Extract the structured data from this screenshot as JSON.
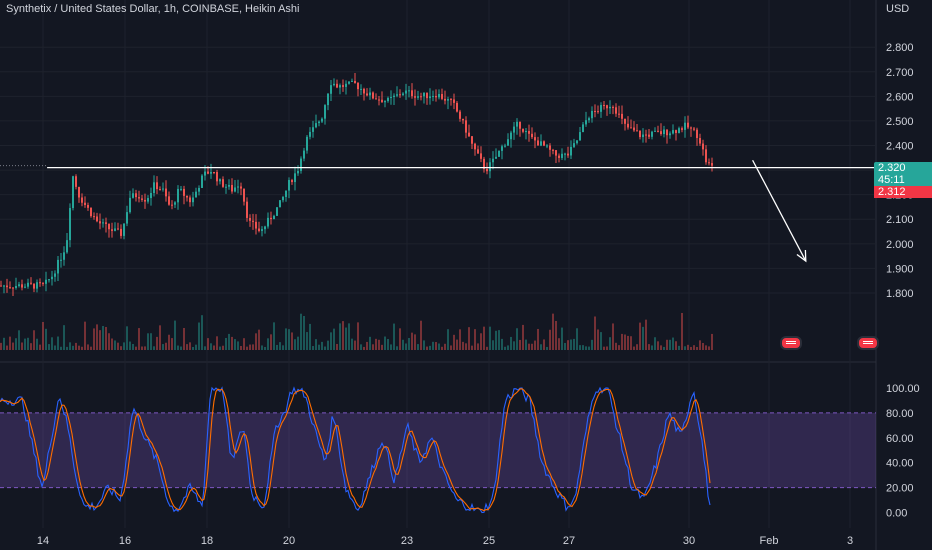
{
  "header": {
    "title": "Synthetix / United States Dollar, 1h, COINBASE, Heikin Ashi",
    "currency": "USD"
  },
  "price_tags": {
    "last_price": "2.320",
    "countdown": "45:11",
    "level_price": "2.312",
    "last_color": "#26a69a",
    "level_color": "#f23645"
  },
  "icons": [
    "us-flag-icon",
    "us-flag-icon"
  ],
  "colors": {
    "up": "#26a69a",
    "down": "#ef5350",
    "background": "#131722",
    "grid": "#1e222d",
    "stoch_k": "#2962ff",
    "stoch_d": "#ff6d00",
    "stoch_band": "#7e57c2",
    "annotation": "#ffffff"
  },
  "chart_data": [
    {
      "type": "candlestick",
      "x_ticks": [
        "14",
        "16",
        "18",
        "20",
        "23",
        "25",
        "27",
        "30",
        "Feb",
        "3"
      ],
      "y_ticks": [
        "2.800",
        "2.700",
        "2.600",
        "2.500",
        "2.400",
        "2.300",
        "2.200",
        "2.100",
        "2.000",
        "1.900",
        "1.800"
      ],
      "ylim": [
        1.69,
        2.87
      ],
      "grid": true,
      "price_path": [
        [
          14,
          1.83
        ],
        [
          14.2,
          1.87
        ],
        [
          14.4,
          1.94
        ],
        [
          14.55,
          2.0
        ],
        [
          14.7,
          2.28
        ],
        [
          14.85,
          2.2
        ],
        [
          15.0,
          2.16
        ],
        [
          15.3,
          2.09
        ],
        [
          15.6,
          2.06
        ],
        [
          15.9,
          2.04
        ],
        [
          16.1,
          2.19
        ],
        [
          16.3,
          2.2
        ],
        [
          16.5,
          2.18
        ],
        [
          16.7,
          2.24
        ],
        [
          16.9,
          2.22
        ],
        [
          17.1,
          2.14
        ],
        [
          17.3,
          2.22
        ],
        [
          17.6,
          2.17
        ],
        [
          17.9,
          2.28
        ],
        [
          18.1,
          2.3
        ],
        [
          18.3,
          2.25
        ],
        [
          18.6,
          2.22
        ],
        [
          18.8,
          2.25
        ],
        [
          19.0,
          2.09
        ],
        [
          19.3,
          2.05
        ],
        [
          19.6,
          2.12
        ],
        [
          19.8,
          2.17
        ],
        [
          20.0,
          2.25
        ],
        [
          20.2,
          2.3
        ],
        [
          20.4,
          2.42
        ],
        [
          20.6,
          2.47
        ],
        [
          20.8,
          2.52
        ],
        [
          21.0,
          2.66
        ],
        [
          21.2,
          2.64
        ],
        [
          21.6,
          2.65
        ],
        [
          22.0,
          2.6
        ],
        [
          22.4,
          2.58
        ],
        [
          22.8,
          2.62
        ],
        [
          23.2,
          2.6
        ],
        [
          23.6,
          2.61
        ],
        [
          24.0,
          2.57
        ],
        [
          24.3,
          2.47
        ],
        [
          24.5,
          2.39
        ],
        [
          24.8,
          2.3
        ],
        [
          25.0,
          2.34
        ],
        [
          25.3,
          2.42
        ],
        [
          25.6,
          2.49
        ],
        [
          25.9,
          2.43
        ],
        [
          26.2,
          2.4
        ],
        [
          26.5,
          2.36
        ],
        [
          26.8,
          2.36
        ],
        [
          27.0,
          2.41
        ],
        [
          27.3,
          2.52
        ],
        [
          27.6,
          2.55
        ],
        [
          27.9,
          2.57
        ],
        [
          28.2,
          2.48
        ],
        [
          28.6,
          2.44
        ],
        [
          29.0,
          2.45
        ],
        [
          29.4,
          2.46
        ],
        [
          29.7,
          2.48
        ],
        [
          30.0,
          2.44
        ],
        [
          30.2,
          2.33
        ],
        [
          30.35,
          2.31
        ]
      ],
      "horizontal_level": 2.31,
      "arrow": {
        "from": [
          31.35,
          2.34
        ],
        "to": [
          32.65,
          1.93
        ]
      }
    },
    {
      "type": "line",
      "name": "",
      "ylim": [
        -6,
        112
      ],
      "y_ticks": [
        "100.00",
        "80.00",
        "60.00",
        "40.00",
        "20.00",
        "0.00"
      ],
      "band": [
        20,
        80
      ],
      "k_path": [
        [
          13.5,
          90
        ],
        [
          13.7,
          60
        ],
        [
          13.9,
          30
        ],
        [
          14.0,
          20
        ],
        [
          14.2,
          60
        ],
        [
          14.4,
          95
        ],
        [
          14.6,
          70
        ],
        [
          14.8,
          30
        ],
        [
          15.0,
          5
        ],
        [
          15.3,
          5
        ],
        [
          15.6,
          20
        ],
        [
          15.9,
          10
        ],
        [
          16.2,
          85
        ],
        [
          16.5,
          60
        ],
        [
          16.8,
          40
        ],
        [
          17.1,
          5
        ],
        [
          17.3,
          3
        ],
        [
          17.6,
          20
        ],
        [
          17.9,
          5
        ],
        [
          18.1,
          100
        ],
        [
          18.4,
          100
        ],
        [
          18.6,
          40
        ],
        [
          18.9,
          70
        ],
        [
          19.1,
          15
        ],
        [
          19.4,
          5
        ],
        [
          19.7,
          70
        ],
        [
          19.9,
          80
        ],
        [
          20.1,
          100
        ],
        [
          20.4,
          95
        ],
        [
          20.7,
          60
        ],
        [
          20.9,
          40
        ],
        [
          21.1,
          80
        ],
        [
          21.4,
          20
        ],
        [
          21.7,
          2
        ],
        [
          22.0,
          30
        ],
        [
          22.3,
          60
        ],
        [
          22.6,
          25
        ],
        [
          22.9,
          70
        ],
        [
          23.2,
          40
        ],
        [
          23.5,
          60
        ],
        [
          23.8,
          30
        ],
        [
          24.1,
          10
        ],
        [
          24.4,
          5
        ],
        [
          24.7,
          0
        ],
        [
          25.0,
          10
        ],
        [
          25.3,
          90
        ],
        [
          25.6,
          100
        ],
        [
          25.9,
          90
        ],
        [
          26.2,
          40
        ],
        [
          26.5,
          20
        ],
        [
          26.8,
          5
        ],
        [
          27.0,
          10
        ],
        [
          27.3,
          70
        ],
        [
          27.5,
          100
        ],
        [
          27.8,
          100
        ],
        [
          28.1,
          60
        ],
        [
          28.4,
          20
        ],
        [
          28.7,
          10
        ],
        [
          29.0,
          40
        ],
        [
          29.3,
          80
        ],
        [
          29.6,
          60
        ],
        [
          29.9,
          100
        ],
        [
          30.1,
          60
        ],
        [
          30.3,
          5
        ],
        [
          30.4,
          15
        ]
      ]
    }
  ]
}
